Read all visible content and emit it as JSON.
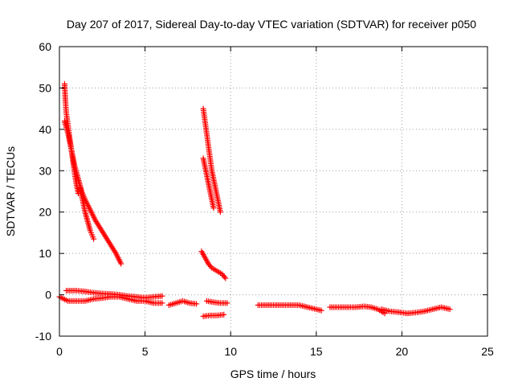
{
  "chart_data": {
    "type": "scatter",
    "title": "Day 207 of 2017, Sidereal Day-to-day VTEC variation (SDTVAR) for receiver p050",
    "xlabel": "GPS time / hours",
    "ylabel": "SDTVAR / TECUs",
    "xlim": [
      0,
      25
    ],
    "ylim": [
      -10,
      60
    ],
    "xticks": [
      0,
      5,
      10,
      15,
      20,
      25
    ],
    "yticks": [
      -10,
      0,
      10,
      20,
      30,
      40,
      50,
      60
    ],
    "grid": true,
    "marker": "+",
    "color": "#ff0000",
    "segments": [
      {
        "name": "arc-a-upper",
        "points": [
          [
            0.3,
            51
          ],
          [
            0.35,
            47
          ],
          [
            0.4,
            44
          ],
          [
            0.5,
            41
          ],
          [
            0.6,
            38
          ],
          [
            0.7,
            35
          ],
          [
            0.8,
            32
          ],
          [
            0.9,
            29
          ],
          [
            1.0,
            26.5
          ],
          [
            1.1,
            24.5
          ]
        ]
      },
      {
        "name": "arc-a-lower",
        "points": [
          [
            0.3,
            42
          ],
          [
            0.5,
            39
          ],
          [
            0.7,
            35
          ],
          [
            0.9,
            31
          ],
          [
            1.1,
            28
          ],
          [
            1.3,
            25
          ],
          [
            1.5,
            23
          ],
          [
            1.8,
            20.5
          ],
          [
            2.1,
            18
          ],
          [
            2.4,
            16
          ],
          [
            2.7,
            14
          ],
          [
            3.0,
            12
          ],
          [
            3.3,
            10
          ],
          [
            3.6,
            7.5
          ]
        ]
      },
      {
        "name": "arc-a-mid",
        "points": [
          [
            1.2,
            26
          ],
          [
            1.3,
            24
          ],
          [
            1.4,
            22
          ],
          [
            1.5,
            20
          ],
          [
            1.6,
            18.5
          ],
          [
            1.7,
            17
          ],
          [
            1.8,
            15.5
          ],
          [
            1.9,
            14.5
          ],
          [
            2.0,
            13.5
          ]
        ]
      },
      {
        "name": "arc-b-upper",
        "points": [
          [
            8.4,
            45
          ],
          [
            8.5,
            42
          ],
          [
            8.6,
            39
          ],
          [
            8.7,
            36
          ],
          [
            8.8,
            33
          ],
          [
            8.9,
            30
          ],
          [
            9.0,
            28
          ],
          [
            9.1,
            26
          ],
          [
            9.2,
            24
          ],
          [
            9.3,
            22
          ],
          [
            9.4,
            20
          ]
        ]
      },
      {
        "name": "arc-b-mid",
        "points": [
          [
            8.4,
            33
          ],
          [
            8.5,
            31
          ],
          [
            8.6,
            29
          ],
          [
            8.7,
            27
          ],
          [
            8.8,
            25
          ],
          [
            8.9,
            23
          ],
          [
            9.0,
            21
          ]
        ]
      },
      {
        "name": "arc-b-lower",
        "points": [
          [
            8.3,
            10.5
          ],
          [
            8.5,
            9
          ],
          [
            8.7,
            7.5
          ],
          [
            8.9,
            6.5
          ],
          [
            9.1,
            6
          ],
          [
            9.3,
            5.5
          ],
          [
            9.5,
            5
          ],
          [
            9.7,
            4
          ]
        ]
      },
      {
        "name": "band-top-early",
        "points": [
          [
            0.4,
            1
          ],
          [
            1,
            1
          ],
          [
            1.5,
            0.8
          ],
          [
            2,
            0.5
          ],
          [
            2.5,
            0.3
          ],
          [
            3,
            0.2
          ],
          [
            3.5,
            0
          ],
          [
            4,
            -0.3
          ],
          [
            4.5,
            -0.5
          ],
          [
            5,
            -0.7
          ],
          [
            5.5,
            -0.5
          ],
          [
            6,
            -0.3
          ]
        ]
      },
      {
        "name": "band-bottom-early",
        "points": [
          [
            0,
            -0.5
          ],
          [
            0.5,
            -1.5
          ],
          [
            1,
            -1.5
          ],
          [
            1.5,
            -1.5
          ],
          [
            2,
            -1
          ],
          [
            2.5,
            -0.8
          ],
          [
            3,
            -0.5
          ],
          [
            3.5,
            -0.5
          ],
          [
            4,
            -1
          ],
          [
            4.5,
            -1.5
          ],
          [
            5,
            -1.5
          ],
          [
            5.5,
            -2
          ],
          [
            6,
            -2
          ]
        ]
      },
      {
        "name": "band-mid",
        "points": [
          [
            6.4,
            -2.5
          ],
          [
            6.8,
            -2
          ],
          [
            7.2,
            -1.5
          ],
          [
            7.6,
            -2
          ],
          [
            8.0,
            -2.2
          ]
        ]
      },
      {
        "name": "band-8-10-upper",
        "points": [
          [
            8.6,
            -1.5
          ],
          [
            9.0,
            -1.8
          ],
          [
            9.4,
            -2
          ],
          [
            9.8,
            -2
          ]
        ]
      },
      {
        "name": "band-8-10-lower",
        "points": [
          [
            8.4,
            -5.2
          ],
          [
            8.8,
            -5
          ],
          [
            9.2,
            -5
          ],
          [
            9.6,
            -4.8
          ]
        ]
      },
      {
        "name": "band-12-15",
        "points": [
          [
            11.6,
            -2.5
          ],
          [
            12,
            -2.5
          ],
          [
            12.5,
            -2.5
          ],
          [
            13,
            -2.5
          ],
          [
            13.5,
            -2.5
          ],
          [
            14,
            -2.5
          ],
          [
            14.5,
            -3
          ],
          [
            15,
            -3.5
          ],
          [
            15.3,
            -3.8
          ]
        ]
      },
      {
        "name": "band-16-18",
        "points": [
          [
            15.8,
            -3
          ],
          [
            16.3,
            -3
          ],
          [
            16.8,
            -3
          ],
          [
            17.3,
            -3
          ],
          [
            17.8,
            -2.8
          ],
          [
            18.2,
            -3
          ],
          [
            18.6,
            -3.5
          ],
          [
            19,
            -4.5
          ]
        ]
      },
      {
        "name": "band-18-22",
        "points": [
          [
            18.8,
            -3.5
          ],
          [
            19.3,
            -4
          ],
          [
            19.8,
            -4.2
          ],
          [
            20.3,
            -4.5
          ],
          [
            20.8,
            -4.3
          ],
          [
            21.3,
            -4
          ],
          [
            21.8,
            -3.5
          ],
          [
            22.3,
            -3
          ],
          [
            22.8,
            -3.5
          ]
        ]
      }
    ]
  }
}
